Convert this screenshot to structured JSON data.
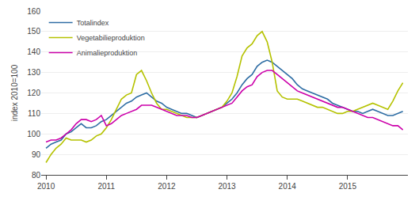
{
  "chart_data": {
    "type": "line",
    "ylabel": "index 2010=100",
    "x": [
      2010,
      2010.0833333333,
      2010.1666666667,
      2010.25,
      2010.3333333333,
      2010.4166666667,
      2010.5,
      2010.5833333333,
      2010.6666666667,
      2010.75,
      2010.8333333333,
      2010.9166666667,
      2011,
      2011.0833333333,
      2011.1666666667,
      2011.25,
      2011.3333333333,
      2011.4166666667,
      2011.5,
      2011.5833333333,
      2011.6666666667,
      2011.75,
      2011.8333333333,
      2011.9166666667,
      2012,
      2012.0833333333,
      2012.1666666667,
      2012.25,
      2012.3333333333,
      2012.4166666667,
      2012.5,
      2012.5833333333,
      2012.6666666667,
      2012.75,
      2012.8333333333,
      2012.9166666667,
      2013,
      2013.0833333333,
      2013.1666666667,
      2013.25,
      2013.3333333333,
      2013.4166666667,
      2013.5,
      2013.5833333333,
      2013.6666666667,
      2013.75,
      2013.8333333333,
      2013.9166666667,
      2014,
      2014.0833333333,
      2014.1666666667,
      2014.25,
      2014.3333333333,
      2014.4166666667,
      2014.5,
      2014.5833333333,
      2014.6666666667,
      2014.75,
      2014.8333333333,
      2014.9166666667,
      2015,
      2015.0833333333,
      2015.1666666667,
      2015.25,
      2015.3333333333,
      2015.4166666667,
      2015.5,
      2015.5833333333,
      2015.6666666667,
      2015.75,
      2015.8333333333,
      2015.9166666667
    ],
    "series": [
      {
        "name": "Totalindex",
        "color": "#2e6da4",
        "values": [
          93,
          95,
          96,
          97,
          100,
          101,
          103,
          105,
          103,
          103,
          104,
          106,
          107,
          109,
          111,
          113,
          115,
          116,
          118,
          119,
          120,
          118,
          116,
          115,
          113,
          112,
          111,
          110,
          110,
          109,
          108,
          109,
          110,
          111,
          112,
          113,
          115,
          117,
          120,
          124,
          127,
          129,
          133,
          135,
          136,
          135,
          133,
          131,
          129,
          127,
          124,
          122,
          121,
          120,
          119,
          118,
          117,
          115,
          114,
          113,
          112,
          111,
          111,
          110,
          111,
          112,
          111,
          110,
          109,
          109,
          110,
          111
        ]
      },
      {
        "name": "Vegetabilieproduktion",
        "color": "#b5c200",
        "values": [
          86,
          90,
          93,
          95,
          98,
          97,
          97,
          97,
          96,
          97,
          99,
          100,
          103,
          107,
          112,
          117,
          119,
          120,
          129,
          131,
          126,
          120,
          115,
          112,
          112,
          111,
          110,
          109,
          108,
          108,
          108,
          109,
          110,
          111,
          112,
          113,
          116,
          120,
          128,
          138,
          142,
          144,
          148,
          150,
          145,
          135,
          121,
          118,
          117,
          117,
          117,
          116,
          115,
          114,
          113,
          113,
          112,
          111,
          110,
          110,
          111,
          111,
          112,
          113,
          114,
          115,
          114,
          113,
          112,
          116,
          121,
          125
        ]
      },
      {
        "name": "Animalieproduktion",
        "color": "#cc00aa",
        "values": [
          96,
          97,
          97,
          98,
          100,
          102,
          105,
          107,
          107,
          106,
          107,
          109,
          104,
          105,
          107,
          109,
          110,
          111,
          112,
          114,
          114,
          114,
          113,
          112,
          111,
          110,
          109,
          109,
          109,
          108,
          108,
          109,
          110,
          111,
          112,
          113,
          114,
          115,
          118,
          121,
          123,
          124,
          128,
          130,
          131,
          131,
          129,
          127,
          125,
          123,
          121,
          120,
          119,
          118,
          117,
          116,
          115,
          114,
          113,
          113,
          112,
          111,
          110,
          109,
          108,
          108,
          107,
          106,
          105,
          104,
          104,
          102
        ]
      }
    ],
    "xlim": [
      2009.92,
      2016.0
    ],
    "xticks": [
      2010,
      2011,
      2012,
      2013,
      2014,
      2015
    ],
    "ylim": [
      80,
      160
    ],
    "yticks": [
      80,
      90,
      100,
      110,
      120,
      130,
      140,
      150,
      160
    ],
    "grid": true,
    "legend": "upper left"
  }
}
